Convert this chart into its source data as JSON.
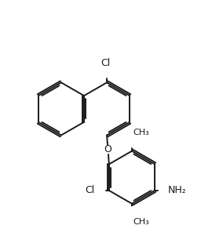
{
  "background": "#ffffff",
  "line_color": "#1a1a1a",
  "line_width": 1.4,
  "font_size": 8.5,
  "figsize": [
    2.7,
    2.92
  ],
  "dpi": 100,
  "xlim": [
    0.0,
    9.0
  ],
  "ylim": [
    0.0,
    9.5
  ]
}
